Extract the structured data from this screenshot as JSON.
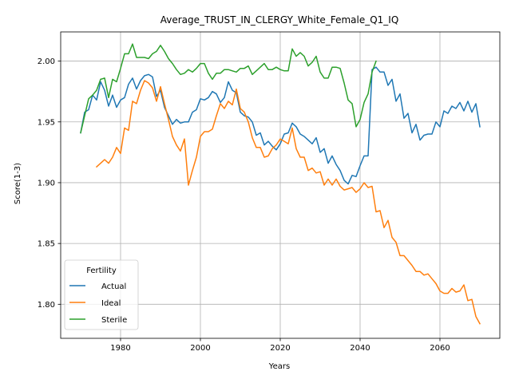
{
  "chart_data": {
    "type": "line",
    "title": "Average_TRUST_IN_CLERGY_White_Female_Q1_IQ",
    "xlabel": "Years",
    "ylabel": "Score(1-3)",
    "xlim": [
      1965,
      2075
    ],
    "ylim": [
      1.772,
      2.024
    ],
    "xticks": [
      1980,
      2000,
      2020,
      2040,
      2060
    ],
    "yticks": [
      1.8,
      1.85,
      1.9,
      1.95,
      2.0
    ],
    "xtick_labels": [
      "1980",
      "2000",
      "2020",
      "2040",
      "2060"
    ],
    "ytick_labels": [
      "1.80",
      "1.85",
      "1.90",
      "1.95",
      "2.00"
    ],
    "grid": true,
    "legend": {
      "title": "Fertility",
      "placement": "lower-left"
    },
    "series": [
      {
        "name": "Actual",
        "color": "#1f77b4",
        "x": [
          1970,
          1971,
          1972,
          1973,
          1974,
          1975,
          1976,
          1977,
          1978,
          1979,
          1980,
          1981,
          1982,
          1983,
          1984,
          1985,
          1986,
          1987,
          1988,
          1989,
          1990,
          1991,
          1992,
          1993,
          1994,
          1995,
          1996,
          1997,
          1998,
          1999,
          2000,
          2001,
          2002,
          2003,
          2004,
          2005,
          2006,
          2007,
          2008,
          2009,
          2010,
          2011,
          2012,
          2013,
          2014,
          2015,
          2016,
          2017,
          2018,
          2019,
          2020,
          2021,
          2022,
          2023,
          2024,
          2025,
          2026,
          2027,
          2028,
          2029,
          2030,
          2031,
          2032,
          2033,
          2034,
          2035,
          2036,
          2037,
          2038,
          2039,
          2040,
          2041,
          2042,
          2043,
          2044,
          2045,
          2046,
          2047,
          2048,
          2049,
          2050,
          2051,
          2052,
          2053,
          2054,
          2055,
          2056,
          2057,
          2058,
          2059,
          2060,
          2061,
          2062,
          2063,
          2064,
          2065,
          2066,
          2067,
          2068,
          2069,
          2070
        ],
        "values": [
          1.941,
          1.958,
          1.96,
          1.972,
          1.968,
          1.983,
          1.976,
          1.963,
          1.972,
          1.962,
          1.968,
          1.97,
          1.981,
          1.986,
          1.977,
          1.984,
          1.988,
          1.989,
          1.987,
          1.971,
          1.976,
          1.962,
          1.955,
          1.948,
          1.952,
          1.949,
          1.95,
          1.95,
          1.958,
          1.96,
          1.969,
          1.968,
          1.97,
          1.975,
          1.973,
          1.966,
          1.97,
          1.983,
          1.976,
          1.974,
          1.958,
          1.955,
          1.954,
          1.95,
          1.939,
          1.941,
          1.931,
          1.934,
          1.93,
          1.927,
          1.932,
          1.94,
          1.941,
          1.949,
          1.946,
          1.94,
          1.938,
          1.935,
          1.932,
          1.937,
          1.925,
          1.928,
          1.916,
          1.922,
          1.915,
          1.91,
          1.902,
          1.899,
          1.906,
          1.905,
          1.914,
          1.922,
          1.922,
          1.993,
          1.995,
          1.991,
          1.991,
          1.98,
          1.985,
          1.967,
          1.973,
          1.953,
          1.957,
          1.941,
          1.948,
          1.935,
          1.939,
          1.94,
          1.94,
          1.95,
          1.946,
          1.959,
          1.957,
          1.963,
          1.961,
          1.966,
          1.959,
          1.967,
          1.958,
          1.965,
          1.946
        ]
      },
      {
        "name": "Ideal",
        "color": "#ff7f0e",
        "x": [
          1974,
          1975,
          1976,
          1977,
          1978,
          1979,
          1980,
          1981,
          1982,
          1983,
          1984,
          1985,
          1986,
          1987,
          1988,
          1989,
          1990,
          1991,
          1992,
          1993,
          1994,
          1995,
          1996,
          1997,
          1998,
          1999,
          2000,
          2001,
          2002,
          2003,
          2004,
          2005,
          2006,
          2007,
          2008,
          2009,
          2010,
          2011,
          2012,
          2013,
          2014,
          2015,
          2016,
          2017,
          2018,
          2019,
          2020,
          2021,
          2022,
          2023,
          2024,
          2025,
          2026,
          2027,
          2028,
          2029,
          2030,
          2031,
          2032,
          2033,
          2034,
          2035,
          2036,
          2037,
          2038,
          2039,
          2040,
          2041,
          2042,
          2043,
          2044,
          2045,
          2046,
          2047,
          2048,
          2049,
          2050,
          2051,
          2052,
          2053,
          2054,
          2055,
          2056,
          2057,
          2058,
          2059,
          2060,
          2061,
          2062,
          2063,
          2064,
          2065,
          2066,
          2067,
          2068,
          2069,
          2070
        ],
        "values": [
          1.913,
          1.916,
          1.919,
          1.916,
          1.921,
          1.929,
          1.924,
          1.945,
          1.943,
          1.967,
          1.965,
          1.976,
          1.984,
          1.982,
          1.978,
          1.967,
          1.979,
          1.965,
          1.952,
          1.938,
          1.931,
          1.926,
          1.936,
          1.898,
          1.91,
          1.921,
          1.938,
          1.942,
          1.942,
          1.944,
          1.955,
          1.965,
          1.961,
          1.967,
          1.964,
          1.977,
          1.961,
          1.958,
          1.95,
          1.937,
          1.929,
          1.929,
          1.921,
          1.922,
          1.928,
          1.931,
          1.936,
          1.934,
          1.932,
          1.945,
          1.928,
          1.921,
          1.921,
          1.91,
          1.912,
          1.908,
          1.909,
          1.898,
          1.903,
          1.898,
          1.903,
          1.897,
          1.894,
          1.895,
          1.896,
          1.892,
          1.895,
          1.9,
          1.896,
          1.897,
          1.876,
          1.877,
          1.863,
          1.869,
          1.855,
          1.851,
          1.84,
          1.84,
          1.836,
          1.832,
          1.827,
          1.827,
          1.824,
          1.825,
          1.821,
          1.817,
          1.811,
          1.809,
          1.809,
          1.813,
          1.81,
          1.811,
          1.816,
          1.803,
          1.804,
          1.79,
          1.784
        ]
      },
      {
        "name": "Sterile",
        "color": "#2ca02c",
        "x": [
          1970,
          1971,
          1972,
          1973,
          1974,
          1975,
          1976,
          1977,
          1978,
          1979,
          1980,
          1981,
          1982,
          1983,
          1984,
          1985,
          1986,
          1987,
          1988,
          1989,
          1990,
          1991,
          1992,
          1993,
          1994,
          1995,
          1996,
          1997,
          1998,
          1999,
          2000,
          2001,
          2002,
          2003,
          2004,
          2005,
          2006,
          2007,
          2008,
          2009,
          2010,
          2011,
          2012,
          2013,
          2014,
          2015,
          2016,
          2017,
          2018,
          2019,
          2020,
          2021,
          2022,
          2023,
          2024,
          2025,
          2026,
          2027,
          2028,
          2029,
          2030,
          2031,
          2032,
          2033,
          2034,
          2035,
          2036,
          2037,
          2038,
          2039,
          2040,
          2041,
          2042,
          2043,
          2044
        ],
        "values": [
          1.941,
          1.955,
          1.969,
          1.972,
          1.976,
          1.985,
          1.986,
          1.97,
          1.985,
          1.983,
          1.994,
          2.006,
          2.006,
          2.014,
          2.003,
          2.003,
          2.003,
          2.002,
          2.006,
          2.008,
          2.013,
          2.008,
          2.002,
          1.998,
          1.993,
          1.989,
          1.99,
          1.993,
          1.991,
          1.994,
          1.998,
          1.998,
          1.99,
          1.985,
          1.99,
          1.99,
          1.993,
          1.993,
          1.992,
          1.991,
          1.994,
          1.994,
          1.996,
          1.989,
          1.992,
          1.995,
          1.998,
          1.993,
          1.993,
          1.995,
          1.993,
          1.992,
          1.992,
          2.01,
          2.004,
          2.007,
          2.004,
          1.996,
          1.999,
          2.004,
          1.991,
          1.986,
          1.986,
          1.995,
          1.995,
          1.994,
          1.982,
          1.968,
          1.965,
          1.946,
          1.952,
          1.966,
          1.973,
          1.991,
          2.0
        ]
      }
    ]
  }
}
